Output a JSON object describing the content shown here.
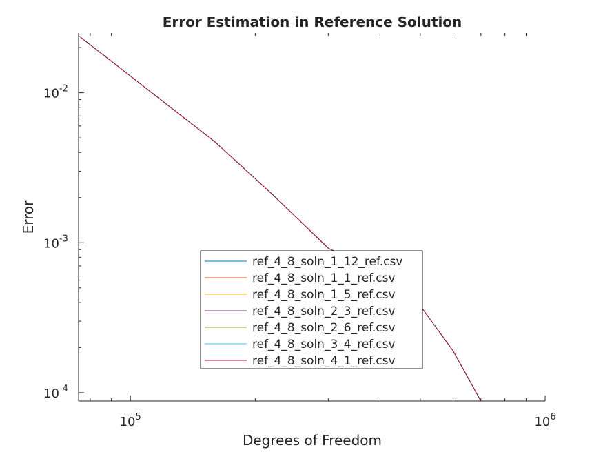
{
  "chart_data": {
    "type": "line",
    "title": "Error Estimation in Reference Solution",
    "xlabel": "Degrees of Freedom",
    "ylabel": "Error",
    "xscale": "log",
    "yscale": "log",
    "xlim": [
      75000,
      1000000
    ],
    "ylim": [
      8.8e-05,
      0.025
    ],
    "x_ticks": [
      {
        "value": 100000,
        "base": "10",
        "exp": "5"
      },
      {
        "value": 1000000,
        "base": "10",
        "exp": "6"
      }
    ],
    "y_ticks": [
      {
        "value": 0.0001,
        "base": "10",
        "exp": "-4"
      },
      {
        "value": 0.001,
        "base": "10",
        "exp": "-3"
      },
      {
        "value": 0.01,
        "base": "10",
        "exp": "-2"
      }
    ],
    "grid": false,
    "legend_position": "lower-center",
    "series": [
      {
        "name": "ref_4_8_soln_1_12_ref.csv",
        "color": "#0072BD",
        "x": [
          75000,
          160000,
          220000,
          300000,
          400000,
          500000,
          600000,
          700000
        ],
        "y": [
          0.024,
          0.0047,
          0.0021,
          0.00092,
          0.00063,
          0.00038,
          0.00019,
          8.8e-05
        ]
      },
      {
        "name": "ref_4_8_soln_1_1_ref.csv",
        "color": "#D95319",
        "x": [
          75000,
          160000,
          220000,
          300000,
          400000,
          500000,
          600000,
          700000
        ],
        "y": [
          0.024,
          0.0047,
          0.0021,
          0.00092,
          0.00063,
          0.00038,
          0.00019,
          8.8e-05
        ]
      },
      {
        "name": "ref_4_8_soln_1_5_ref.csv",
        "color": "#EDB120",
        "x": [
          75000,
          160000,
          220000,
          300000,
          400000,
          500000,
          600000,
          700000
        ],
        "y": [
          0.024,
          0.0047,
          0.0021,
          0.00092,
          0.00063,
          0.00038,
          0.00019,
          8.8e-05
        ]
      },
      {
        "name": "ref_4_8_soln_2_3_ref.csv",
        "color": "#7E2F8E",
        "x": [
          75000,
          160000,
          220000,
          300000,
          400000,
          500000,
          600000,
          700000
        ],
        "y": [
          0.024,
          0.0047,
          0.0021,
          0.00092,
          0.00063,
          0.00038,
          0.00019,
          8.8e-05
        ]
      },
      {
        "name": "ref_4_8_soln_2_6_ref.csv",
        "color": "#77AC30",
        "x": [
          75000,
          160000,
          220000,
          300000,
          400000,
          500000,
          600000,
          700000
        ],
        "y": [
          0.024,
          0.0047,
          0.0021,
          0.00092,
          0.00063,
          0.00038,
          0.00019,
          8.8e-05
        ]
      },
      {
        "name": "ref_4_8_soln_3_4_ref.csv",
        "color": "#4DBEEE",
        "x": [
          75000,
          160000,
          220000,
          300000,
          400000,
          500000,
          600000,
          700000
        ],
        "y": [
          0.024,
          0.0047,
          0.0021,
          0.00092,
          0.00063,
          0.00038,
          0.00019,
          8.8e-05
        ]
      },
      {
        "name": "ref_4_8_soln_4_1_ref.csv",
        "color": "#A2142F",
        "x": [
          75000,
          160000,
          220000,
          300000,
          400000,
          500000,
          600000,
          700000
        ],
        "y": [
          0.024,
          0.0047,
          0.0021,
          0.00092,
          0.00063,
          0.00038,
          0.00019,
          8.8e-05
        ]
      }
    ]
  }
}
